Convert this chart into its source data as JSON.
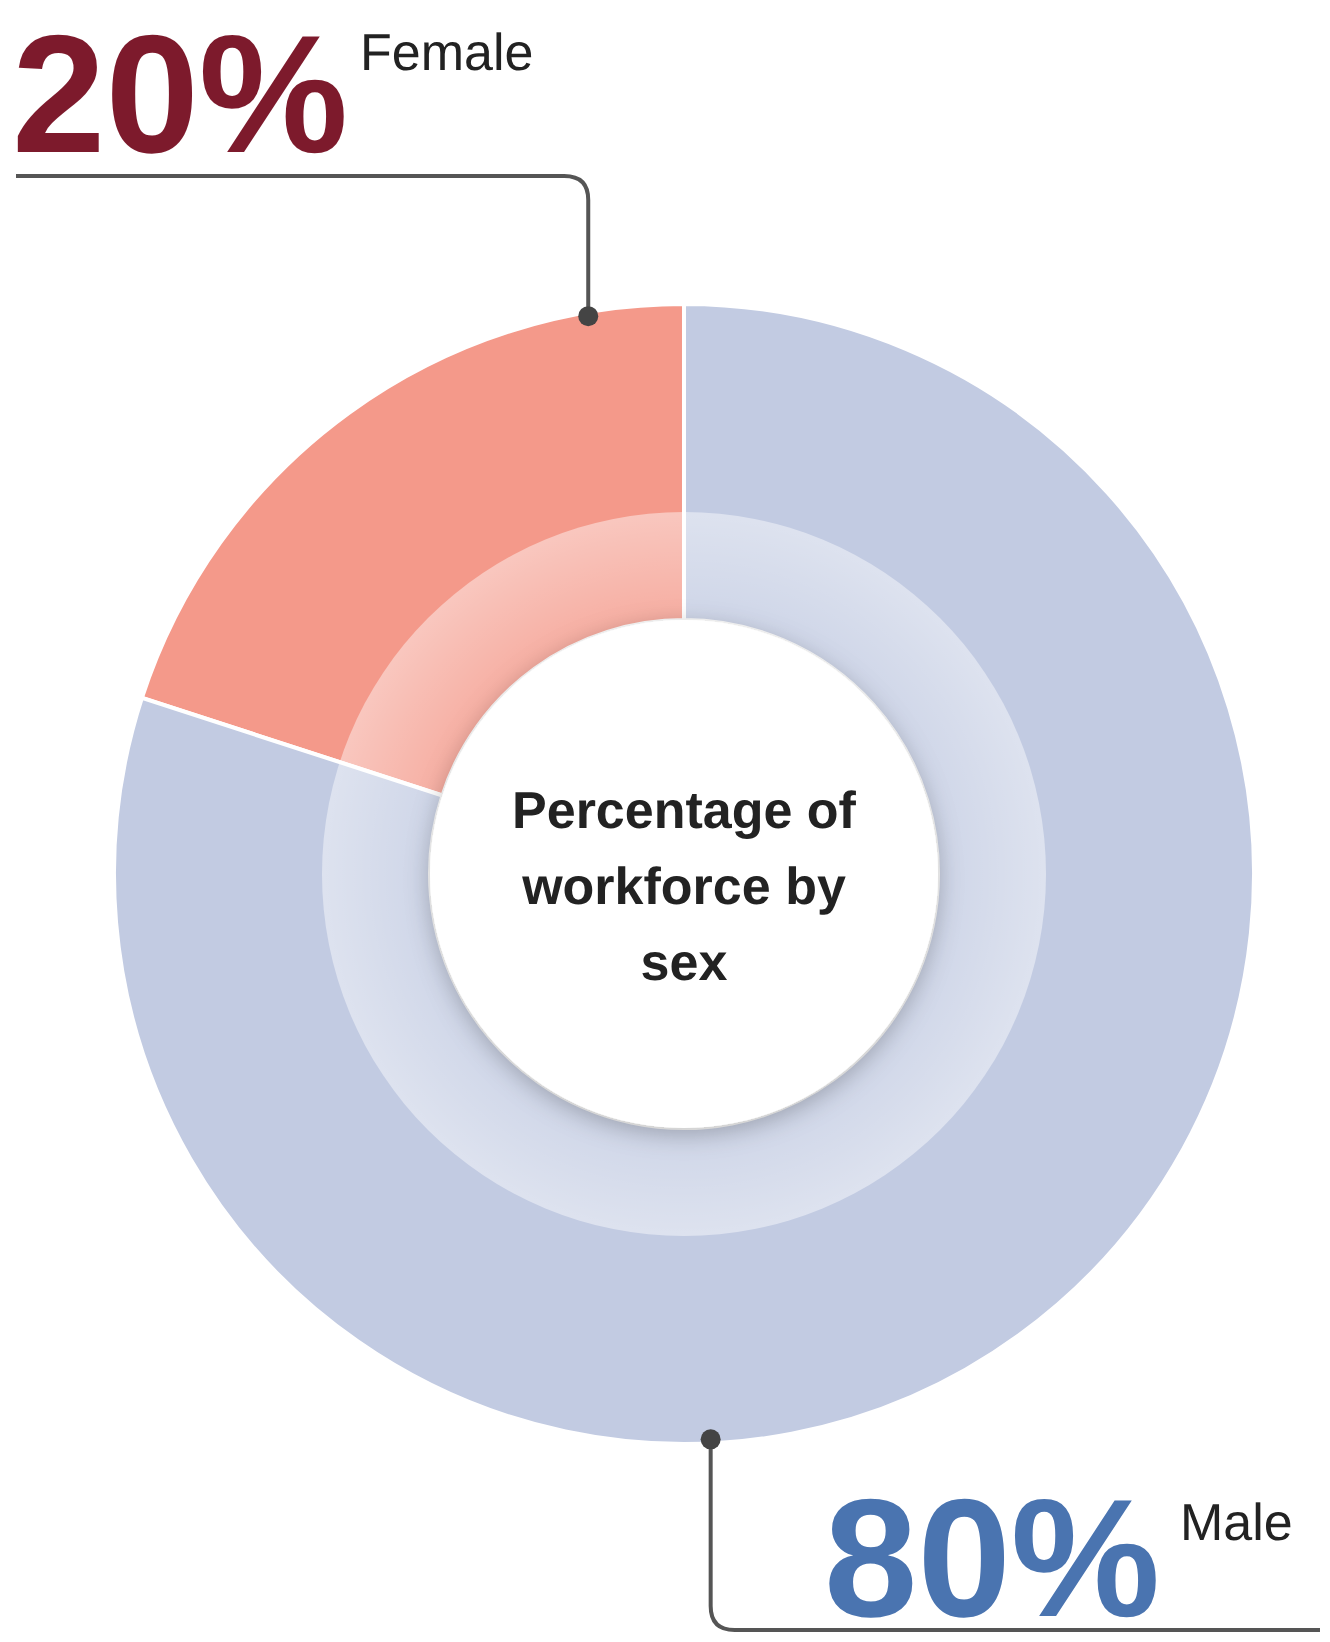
{
  "chart_data": {
    "type": "donut",
    "title": "Percentage of workforce by sex",
    "categories": [
      "Female",
      "Male"
    ],
    "values": [
      20,
      80
    ],
    "colors": [
      "#f4998a",
      "#c2cbe2"
    ],
    "value_labels": [
      "20%",
      "80%"
    ]
  }
}
